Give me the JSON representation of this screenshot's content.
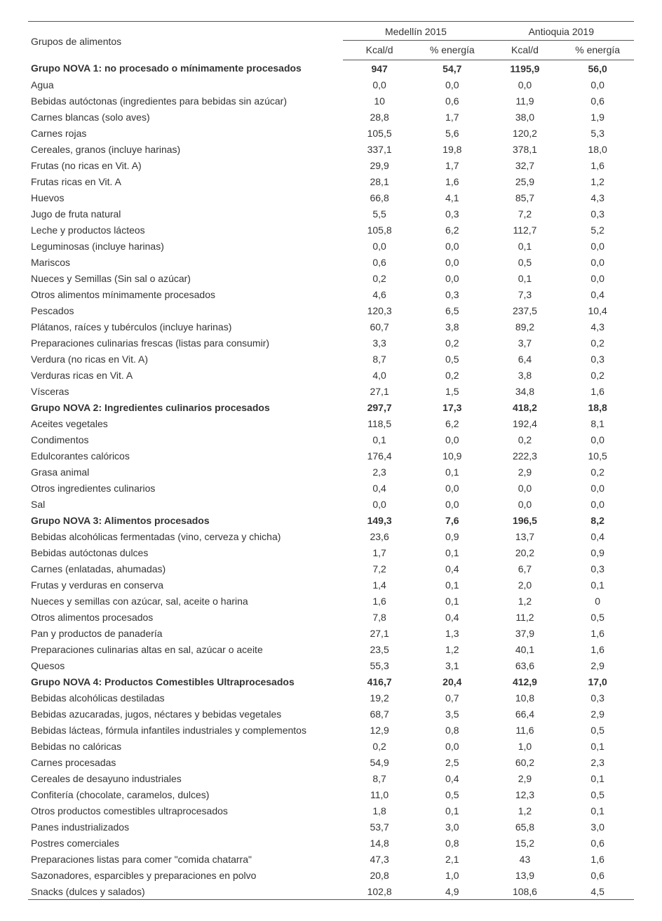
{
  "table": {
    "colors": {
      "text": "#333333",
      "border": "#555555",
      "bg": "#ffffff"
    },
    "font_size_pt": 10.5,
    "header": {
      "row_label": "Grupos de alimentos",
      "groups": [
        "Medellín 2015",
        "Antioquia 2019"
      ],
      "sub_cols": [
        "Kcal/d",
        "% energía",
        "Kcal/d",
        "% energía"
      ]
    },
    "rows": [
      {
        "label": "Grupo NOVA 1: no procesado o mínimamente procesados",
        "vals": [
          "947",
          "54,7",
          "1195,9",
          "56,0"
        ],
        "bold": true
      },
      {
        "label": "Agua",
        "vals": [
          "0,0",
          "0,0",
          "0,0",
          "0,0"
        ]
      },
      {
        "label": "Bebidas autóctonas (ingredientes para bebidas sin azúcar)",
        "vals": [
          "10",
          "0,6",
          "11,9",
          "0,6"
        ]
      },
      {
        "label": "Carnes blancas (solo aves)",
        "vals": [
          "28,8",
          "1,7",
          "38,0",
          "1,9"
        ]
      },
      {
        "label": "Carnes rojas",
        "vals": [
          "105,5",
          "5,6",
          "120,2",
          "5,3"
        ]
      },
      {
        "label": "Cereales, granos (incluye harinas)",
        "vals": [
          "337,1",
          "19,8",
          "378,1",
          "18,0"
        ]
      },
      {
        "label": "Frutas (no ricas en Vit. A)",
        "vals": [
          "29,9",
          "1,7",
          "32,7",
          "1,6"
        ]
      },
      {
        "label": "Frutas ricas en Vit. A",
        "vals": [
          "28,1",
          "1,6",
          "25,9",
          "1,2"
        ]
      },
      {
        "label": "Huevos",
        "vals": [
          "66,8",
          "4,1",
          "85,7",
          "4,3"
        ]
      },
      {
        "label": "Jugo de fruta natural",
        "vals": [
          "5,5",
          "0,3",
          "7,2",
          "0,3"
        ]
      },
      {
        "label": "Leche y productos lácteos",
        "vals": [
          "105,8",
          "6,2",
          "112,7",
          "5,2"
        ]
      },
      {
        "label": "Leguminosas (incluye harinas)",
        "vals": [
          "0,0",
          "0,0",
          "0,1",
          "0,0"
        ]
      },
      {
        "label": "Mariscos",
        "vals": [
          "0,6",
          "0,0",
          "0,5",
          "0,0"
        ]
      },
      {
        "label": "Nueces y Semillas (Sin sal o azúcar)",
        "vals": [
          "0,2",
          "0,0",
          "0,1",
          "0,0"
        ]
      },
      {
        "label": "Otros alimentos mínimamente procesados",
        "vals": [
          "4,6",
          "0,3",
          "7,3",
          "0,4"
        ]
      },
      {
        "label": "Pescados",
        "vals": [
          "120,3",
          "6,5",
          "237,5",
          "10,4"
        ]
      },
      {
        "label": "Plátanos, raíces y tubérculos (incluye harinas)",
        "vals": [
          "60,7",
          "3,8",
          "89,2",
          "4,3"
        ]
      },
      {
        "label": "Preparaciones culinarias frescas (listas para consumir)",
        "vals": [
          "3,3",
          "0,2",
          "3,7",
          "0,2"
        ]
      },
      {
        "label": "Verdura (no ricas en Vit. A)",
        "vals": [
          "8,7",
          "0,5",
          "6,4",
          "0,3"
        ]
      },
      {
        "label": "Verduras ricas en Vit. A",
        "vals": [
          "4,0",
          "0,2",
          "3,8",
          "0,2"
        ]
      },
      {
        "label": "Vísceras",
        "vals": [
          "27,1",
          "1,5",
          "34,8",
          "1,6"
        ]
      },
      {
        "label": "Grupo NOVA 2: Ingredientes culinarios procesados",
        "vals": [
          "297,7",
          "17,3",
          "418,2",
          "18,8"
        ],
        "bold": true
      },
      {
        "label": "Aceites vegetales",
        "vals": [
          "118,5",
          "6,2",
          "192,4",
          "8,1"
        ]
      },
      {
        "label": "Condimentos",
        "vals": [
          "0,1",
          "0,0",
          "0,2",
          "0,0"
        ]
      },
      {
        "label": "Edulcorantes calóricos",
        "vals": [
          "176,4",
          "10,9",
          "222,3",
          "10,5"
        ]
      },
      {
        "label": "Grasa animal",
        "vals": [
          "2,3",
          "0,1",
          "2,9",
          "0,2"
        ]
      },
      {
        "label": "Otros ingredientes culinarios",
        "vals": [
          "0,4",
          "0,0",
          "0,0",
          "0,0"
        ]
      },
      {
        "label": "Sal",
        "vals": [
          "0,0",
          "0,0",
          "0,0",
          "0,0"
        ]
      },
      {
        "label": "Grupo NOVA 3: Alimentos procesados",
        "vals": [
          "149,3",
          "7,6",
          "196,5",
          "8,2"
        ],
        "bold": true
      },
      {
        "label": "Bebidas alcohólicas fermentadas (vino, cerveza y chicha)",
        "vals": [
          "23,6",
          "0,9",
          "13,7",
          "0,4"
        ]
      },
      {
        "label": "Bebidas autóctonas dulces",
        "vals": [
          "1,7",
          "0,1",
          "20,2",
          "0,9"
        ]
      },
      {
        "label": "Carnes (enlatadas, ahumadas)",
        "vals": [
          "7,2",
          "0,4",
          "6,7",
          "0,3"
        ]
      },
      {
        "label": "Frutas y verduras en conserva",
        "vals": [
          "1,4",
          "0,1",
          "2,0",
          "0,1"
        ]
      },
      {
        "label": "Nueces y semillas con azúcar, sal, aceite o harina",
        "vals": [
          "1,6",
          "0,1",
          "1,2",
          "0"
        ]
      },
      {
        "label": "Otros alimentos procesados",
        "vals": [
          "7,8",
          "0,4",
          "11,2",
          "0,5"
        ]
      },
      {
        "label": "Pan y productos de panadería",
        "vals": [
          "27,1",
          "1,3",
          "37,9",
          "1,6"
        ]
      },
      {
        "label": "Preparaciones culinarias altas en sal, azúcar o aceite",
        "vals": [
          "23,5",
          "1,2",
          "40,1",
          "1,6"
        ]
      },
      {
        "label": "Quesos",
        "vals": [
          "55,3",
          "3,1",
          "63,6",
          "2,9"
        ]
      },
      {
        "label": "Grupo NOVA 4: Productos Comestibles Ultraprocesados",
        "vals": [
          "416,7",
          "20,4",
          "412,9",
          "17,0"
        ],
        "bold": true
      },
      {
        "label": "Bebidas alcohólicas destiladas",
        "vals": [
          "19,2",
          "0,7",
          "10,8",
          "0,3"
        ]
      },
      {
        "label": "Bebidas azucaradas, jugos, néctares y bebidas vegetales",
        "vals": [
          "68,7",
          "3,5",
          "66,4",
          "2,9"
        ]
      },
      {
        "label": "Bebidas lácteas, fórmula infantiles industriales y complementos",
        "vals": [
          "12,9",
          "0,8",
          "11,6",
          "0,5"
        ]
      },
      {
        "label": "Bebidas no calóricas",
        "vals": [
          "0,2",
          "0,0",
          "1,0",
          "0,1"
        ]
      },
      {
        "label": "Carnes procesadas",
        "vals": [
          "54,9",
          "2,5",
          "60,2",
          "2,3"
        ]
      },
      {
        "label": "Cereales de desayuno industriales",
        "vals": [
          "8,7",
          "0,4",
          "2,9",
          "0,1"
        ]
      },
      {
        "label": "Confitería (chocolate, caramelos, dulces)",
        "vals": [
          "11,0",
          "0,5",
          "12,3",
          "0,5"
        ]
      },
      {
        "label": "Otros productos comestibles ultraprocesados",
        "vals": [
          "1,8",
          "0,1",
          "1,2",
          "0,1"
        ]
      },
      {
        "label": "Panes industrializados",
        "vals": [
          "53,7",
          "3,0",
          "65,8",
          "3,0"
        ]
      },
      {
        "label": "Postres comerciales",
        "vals": [
          "14,8",
          "0,8",
          "15,2",
          "0,6"
        ]
      },
      {
        "label": "Preparaciones listas para comer \"comida chatarra\"",
        "vals": [
          "47,3",
          "2,1",
          "43",
          "1,6"
        ]
      },
      {
        "label": "Sazonadores, esparcibles y preparaciones en polvo",
        "vals": [
          "20,8",
          "1,0",
          "13,9",
          "0,6"
        ]
      },
      {
        "label": "Snacks (dulces y salados)",
        "vals": [
          "102,8",
          "4,9",
          "108,6",
          "4,5"
        ]
      }
    ]
  }
}
